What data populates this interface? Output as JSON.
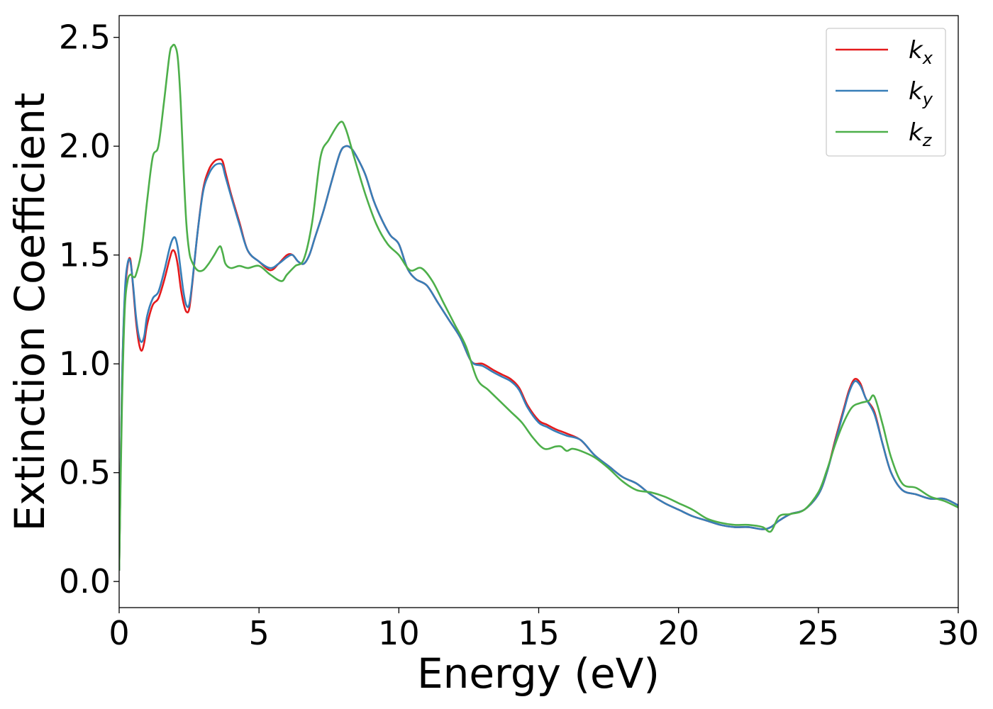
{
  "chart_data": {
    "type": "line",
    "xlabel": "Energy (eV)",
    "ylabel": "Extinction Coefficient",
    "xlim": [
      0,
      30
    ],
    "ylim": [
      -0.12,
      2.6
    ],
    "xticks": [
      0,
      5,
      10,
      15,
      20,
      25,
      30
    ],
    "xtick_labels": [
      "0",
      "5",
      "10",
      "15",
      "20",
      "25",
      "30"
    ],
    "yticks": [
      0,
      0.5,
      1,
      1.5,
      2,
      2.5
    ],
    "ytick_labels": [
      "0.0",
      "0.5",
      "1.0",
      "1.5",
      "2.0",
      "2.5"
    ],
    "grid": false,
    "legend_position": "top-right",
    "series": [
      {
        "name": "k_x",
        "label_main": "k",
        "label_sub": "x",
        "color": "#e41a1c",
        "x": [
          0,
          0.1,
          0.2,
          0.3,
          0.4,
          0.5,
          0.6,
          0.7,
          0.8,
          0.9,
          1.0,
          1.2,
          1.4,
          1.6,
          1.8,
          1.9,
          2.0,
          2.1,
          2.2,
          2.3,
          2.4,
          2.5,
          2.6,
          2.8,
          3.0,
          3.2,
          3.4,
          3.6,
          3.7,
          3.8,
          4.0,
          4.3,
          4.6,
          5.0,
          5.4,
          5.7,
          6.0,
          6.2,
          6.4,
          6.6,
          6.8,
          7.0,
          7.3,
          7.6,
          7.9,
          8.1,
          8.3,
          8.5,
          8.8,
          9.1,
          9.4,
          9.7,
          10.0,
          10.3,
          10.6,
          11.0,
          11.4,
          11.8,
          12.2,
          12.6,
          13.0,
          13.4,
          13.7,
          14.0,
          14.3,
          14.6,
          15.0,
          15.3,
          15.6,
          16.0,
          16.5,
          17.0,
          17.5,
          18.0,
          18.5,
          19.0,
          19.5,
          20.0,
          20.5,
          21.0,
          21.5,
          22.0,
          22.5,
          23.0,
          23.3,
          23.6,
          24.0,
          24.5,
          25.0,
          25.3,
          25.6,
          25.9,
          26.1,
          26.3,
          26.5,
          26.7,
          27.0,
          27.3,
          27.6,
          28.0,
          28.5,
          29.0,
          29.5,
          30.0
        ],
        "y": [
          0.05,
          0.9,
          1.3,
          1.45,
          1.48,
          1.35,
          1.2,
          1.1,
          1.06,
          1.1,
          1.18,
          1.27,
          1.3,
          1.38,
          1.48,
          1.52,
          1.51,
          1.45,
          1.35,
          1.28,
          1.24,
          1.25,
          1.35,
          1.6,
          1.8,
          1.89,
          1.93,
          1.94,
          1.93,
          1.88,
          1.78,
          1.65,
          1.52,
          1.47,
          1.43,
          1.46,
          1.5,
          1.5,
          1.47,
          1.46,
          1.5,
          1.58,
          1.7,
          1.84,
          1.97,
          2.0,
          1.99,
          1.95,
          1.87,
          1.75,
          1.66,
          1.59,
          1.55,
          1.44,
          1.39,
          1.36,
          1.28,
          1.2,
          1.12,
          1.01,
          1.0,
          0.97,
          0.95,
          0.93,
          0.89,
          0.81,
          0.74,
          0.72,
          0.7,
          0.68,
          0.65,
          0.58,
          0.53,
          0.48,
          0.45,
          0.4,
          0.36,
          0.33,
          0.3,
          0.28,
          0.26,
          0.25,
          0.25,
          0.24,
          0.25,
          0.28,
          0.31,
          0.33,
          0.4,
          0.5,
          0.65,
          0.79,
          0.88,
          0.93,
          0.91,
          0.84,
          0.78,
          0.63,
          0.5,
          0.42,
          0.4,
          0.38,
          0.38,
          0.35
        ]
      },
      {
        "name": "k_y",
        "label_main": "k",
        "label_sub": "y",
        "color": "#377eb8",
        "x": [
          0,
          0.1,
          0.2,
          0.3,
          0.4,
          0.5,
          0.6,
          0.7,
          0.8,
          0.9,
          1.0,
          1.2,
          1.4,
          1.6,
          1.8,
          1.9,
          2.0,
          2.1,
          2.2,
          2.3,
          2.4,
          2.5,
          2.6,
          2.8,
          3.0,
          3.2,
          3.4,
          3.6,
          3.7,
          3.8,
          4.0,
          4.3,
          4.6,
          5.0,
          5.4,
          5.7,
          6.0,
          6.2,
          6.4,
          6.6,
          6.8,
          7.0,
          7.3,
          7.6,
          7.9,
          8.1,
          8.3,
          8.5,
          8.8,
          9.1,
          9.4,
          9.7,
          10.0,
          10.3,
          10.6,
          11.0,
          11.4,
          11.8,
          12.2,
          12.6,
          13.0,
          13.4,
          13.7,
          14.0,
          14.3,
          14.6,
          15.0,
          15.3,
          15.6,
          16.0,
          16.5,
          17.0,
          17.5,
          18.0,
          18.5,
          19.0,
          19.5,
          20.0,
          20.5,
          21.0,
          21.5,
          22.0,
          22.5,
          23.0,
          23.3,
          23.6,
          24.0,
          24.5,
          25.0,
          25.3,
          25.6,
          25.9,
          26.1,
          26.3,
          26.5,
          26.7,
          27.0,
          27.3,
          27.6,
          28.0,
          28.5,
          29.0,
          29.5,
          30.0
        ],
        "y": [
          0.05,
          0.9,
          1.32,
          1.46,
          1.47,
          1.36,
          1.22,
          1.13,
          1.1,
          1.13,
          1.22,
          1.3,
          1.33,
          1.42,
          1.53,
          1.57,
          1.58,
          1.53,
          1.43,
          1.33,
          1.27,
          1.27,
          1.36,
          1.6,
          1.79,
          1.87,
          1.91,
          1.92,
          1.91,
          1.86,
          1.77,
          1.64,
          1.52,
          1.47,
          1.44,
          1.46,
          1.49,
          1.5,
          1.47,
          1.46,
          1.5,
          1.58,
          1.7,
          1.84,
          1.97,
          2.0,
          1.99,
          1.95,
          1.87,
          1.75,
          1.66,
          1.59,
          1.55,
          1.44,
          1.39,
          1.36,
          1.28,
          1.2,
          1.12,
          1.01,
          0.99,
          0.96,
          0.94,
          0.92,
          0.88,
          0.8,
          0.73,
          0.71,
          0.69,
          0.67,
          0.65,
          0.58,
          0.53,
          0.48,
          0.45,
          0.4,
          0.36,
          0.33,
          0.3,
          0.28,
          0.26,
          0.25,
          0.25,
          0.24,
          0.25,
          0.28,
          0.31,
          0.33,
          0.4,
          0.5,
          0.64,
          0.78,
          0.87,
          0.92,
          0.9,
          0.84,
          0.77,
          0.63,
          0.5,
          0.42,
          0.4,
          0.38,
          0.38,
          0.35
        ]
      },
      {
        "name": "k_z",
        "label_main": "k",
        "label_sub": "z",
        "color": "#4daf4a",
        "x": [
          0,
          0.1,
          0.2,
          0.3,
          0.4,
          0.5,
          0.6,
          0.8,
          1.0,
          1.2,
          1.4,
          1.6,
          1.8,
          1.9,
          2.0,
          2.1,
          2.2,
          2.3,
          2.4,
          2.5,
          2.6,
          2.8,
          3.0,
          3.2,
          3.4,
          3.6,
          3.7,
          3.8,
          4.0,
          4.3,
          4.6,
          5.0,
          5.4,
          5.8,
          6.0,
          6.3,
          6.6,
          6.9,
          7.2,
          7.5,
          7.9,
          8.1,
          8.4,
          8.8,
          9.2,
          9.6,
          10.0,
          10.4,
          10.8,
          11.2,
          11.6,
          12.0,
          12.4,
          12.8,
          13.2,
          13.6,
          14.0,
          14.4,
          14.8,
          15.2,
          15.6,
          15.8,
          16.0,
          16.2,
          16.5,
          17.0,
          17.5,
          18.0,
          18.5,
          19.0,
          19.5,
          20.0,
          20.5,
          21.0,
          21.5,
          22.0,
          22.5,
          23.0,
          23.3,
          23.6,
          24.0,
          24.5,
          25.0,
          25.3,
          25.6,
          25.9,
          26.2,
          26.5,
          26.8,
          27.0,
          27.3,
          27.6,
          28.0,
          28.5,
          29.0,
          29.5,
          30.0
        ],
        "y": [
          0.05,
          0.8,
          1.25,
          1.38,
          1.41,
          1.4,
          1.41,
          1.52,
          1.75,
          1.95,
          2.0,
          2.2,
          2.42,
          2.46,
          2.46,
          2.4,
          2.2,
          1.9,
          1.65,
          1.52,
          1.47,
          1.43,
          1.43,
          1.46,
          1.5,
          1.54,
          1.51,
          1.46,
          1.44,
          1.45,
          1.44,
          1.45,
          1.41,
          1.38,
          1.41,
          1.45,
          1.48,
          1.65,
          1.95,
          2.03,
          2.11,
          2.08,
          1.95,
          1.78,
          1.64,
          1.55,
          1.5,
          1.43,
          1.44,
          1.38,
          1.28,
          1.18,
          1.08,
          0.93,
          0.88,
          0.83,
          0.78,
          0.73,
          0.66,
          0.61,
          0.62,
          0.62,
          0.6,
          0.61,
          0.6,
          0.57,
          0.52,
          0.46,
          0.42,
          0.41,
          0.39,
          0.36,
          0.33,
          0.29,
          0.27,
          0.26,
          0.26,
          0.25,
          0.23,
          0.3,
          0.31,
          0.33,
          0.41,
          0.51,
          0.63,
          0.73,
          0.8,
          0.82,
          0.83,
          0.85,
          0.72,
          0.57,
          0.45,
          0.43,
          0.39,
          0.37,
          0.34
        ]
      }
    ]
  }
}
